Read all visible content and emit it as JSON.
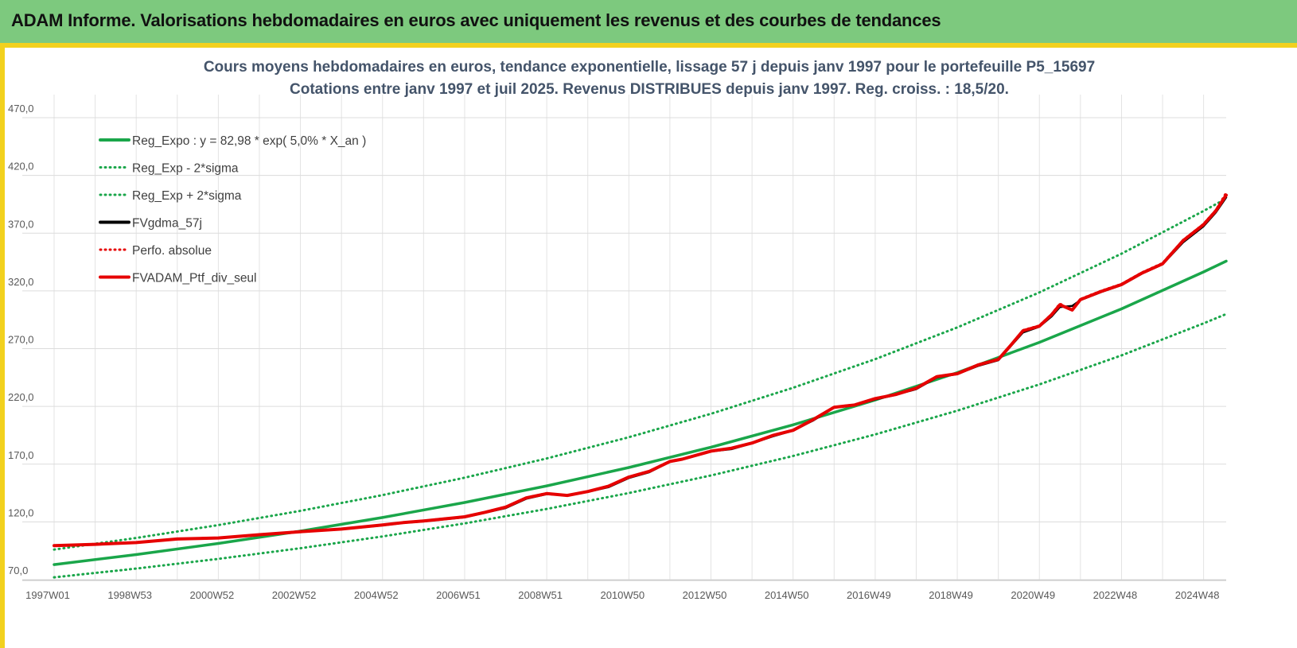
{
  "page": {
    "banner_title": "ADAM Informe. Valorisations hebdomadaires en euros avec uniquement les revenus et des courbes de tendances"
  },
  "chart_data": {
    "type": "line",
    "title": "Cours moyens hebdomadaires  en euros, tendance exponentielle, lissage 57 j depuis janv 1997 pour le portefeuille P5_15697",
    "subtitle": "Cotations entre janv 1997 et juil 2025. Revenus DISTRIBUES depuis janv 1997. Reg. croiss. : 18,5/20.",
    "xlabel": "",
    "ylabel": "",
    "x_start_year": 1997.0,
    "x_end_year": 2025.55,
    "x_tick_labels": [
      "1997W01",
      "1998W53",
      "2000W52",
      "2002W52",
      "2004W52",
      "2006W51",
      "2008W51",
      "2010W50",
      "2012W50",
      "2014W50",
      "2016W49",
      "2018W49",
      "2020W49",
      "2022W48",
      "2024W48"
    ],
    "x_tick_years": [
      1997.0,
      1999.0,
      2001.0,
      2003.0,
      2005.0,
      2007.0,
      2009.0,
      2011.0,
      2013.0,
      2015.0,
      2017.0,
      2019.0,
      2021.0,
      2023.0,
      2025.0
    ],
    "ylim": [
      70,
      490
    ],
    "y_ticks": [
      70,
      120,
      170,
      220,
      270,
      320,
      370,
      420,
      470
    ],
    "y_tick_labels": [
      "70,0",
      "120,0",
      "170,0",
      "220,0",
      "270,0",
      "320,0",
      "370,0",
      "420,0",
      "470,0"
    ],
    "grid": true,
    "legend_position": "top-left",
    "series": [
      {
        "name": "Reg_Expo : y = 82,98 * exp( 5,0% *  X_an )",
        "style": "solid",
        "color": "#1aa64a",
        "x": [
          1997.0,
          1999.0,
          2001.0,
          2003.0,
          2005.0,
          2007.0,
          2009.0,
          2011.0,
          2013.0,
          2015.0,
          2017.0,
          2019.0,
          2021.0,
          2023.0,
          2025.0,
          2025.55
        ],
        "y": [
          82.98,
          91.71,
          101.35,
          112.01,
          123.79,
          136.81,
          151.2,
          167.1,
          184.67,
          204.09,
          225.56,
          249.28,
          275.49,
          304.46,
          336.48,
          345.8
        ]
      },
      {
        "name": "Reg_Exp - 2*sigma",
        "style": "dotted",
        "color": "#1aa64a",
        "x": [
          1997.0,
          1999.0,
          2001.0,
          2003.0,
          2005.0,
          2007.0,
          2009.0,
          2011.0,
          2013.0,
          2015.0,
          2017.0,
          2019.0,
          2021.0,
          2023.0,
          2025.0,
          2025.55
        ],
        "y": [
          72.0,
          79.57,
          87.94,
          97.19,
          107.41,
          118.7,
          131.19,
          144.98,
          160.23,
          177.08,
          195.7,
          216.28,
          239.03,
          264.16,
          291.94,
          300.0
        ]
      },
      {
        "name": "Reg_Exp + 2*sigma",
        "style": "dotted",
        "color": "#1aa64a",
        "x": [
          1997.0,
          1999.0,
          2001.0,
          2003.0,
          2005.0,
          2007.0,
          2009.0,
          2011.0,
          2013.0,
          2015.0,
          2017.0,
          2019.0,
          2021.0,
          2023.0,
          2025.0,
          2025.55
        ],
        "y": [
          96.0,
          106.1,
          117.26,
          129.59,
          143.22,
          158.28,
          174.93,
          193.32,
          213.65,
          236.12,
          260.95,
          288.4,
          318.72,
          352.24,
          389.28,
          400.0
        ]
      },
      {
        "name": "FVgdma_57j",
        "style": "solid",
        "color": "#000000",
        "x": [
          1997.0,
          1997.5,
          1998.0,
          1999.0,
          2000.0,
          2001.0,
          2002.0,
          2003.0,
          2004.0,
          2005.0,
          2005.5,
          2006.0,
          2007.0,
          2007.5,
          2008.0,
          2008.5,
          2009.0,
          2009.5,
          2010.0,
          2010.5,
          2011.0,
          2011.5,
          2012.0,
          2012.3,
          2013.0,
          2013.5,
          2014.0,
          2014.5,
          2015.0,
          2015.5,
          2016.0,
          2016.5,
          2017.0,
          2017.5,
          2018.0,
          2018.5,
          2019.0,
          2019.5,
          2020.0,
          2020.3,
          2020.6,
          2021.0,
          2021.3,
          2021.5,
          2021.8,
          2022.0,
          2022.5,
          2023.0,
          2023.5,
          2024.0,
          2024.5,
          2025.0,
          2025.3,
          2025.55
        ],
        "y": [
          99.5,
          99.8,
          100.5,
          102.0,
          105.0,
          106.0,
          108.5,
          112.0,
          113.5,
          117.0,
          119.0,
          120.5,
          124.0,
          128.0,
          132.0,
          140.0,
          144.0,
          143.0,
          146.0,
          150.0,
          158.0,
          163.0,
          172.0,
          174.0,
          181.0,
          183.0,
          188.0,
          194.0,
          199.0,
          208.0,
          219.0,
          221.0,
          226.0,
          230.0,
          235.0,
          245.0,
          248.0,
          255.0,
          260.0,
          272.0,
          284.0,
          289.0,
          298.0,
          306.0,
          307.0,
          312.0,
          319.0,
          325.0,
          335.0,
          343.0,
          362.0,
          376.0,
          388.0,
          401.0
        ]
      },
      {
        "name": "Perfo. absolue",
        "style": "dotted",
        "color": "#e60000",
        "x": [
          1997.0,
          1998.0,
          1999.0,
          2000.0,
          2001.0,
          2002.0,
          2003.0,
          2004.0,
          2005.0,
          2005.5,
          2006.0,
          2007.0,
          2007.5,
          2008.0,
          2008.5,
          2009.0,
          2009.5,
          2010.0,
          2010.5,
          2011.0,
          2011.5,
          2012.0,
          2012.3,
          2013.0,
          2013.5,
          2014.0,
          2014.5,
          2015.0,
          2015.5,
          2016.0,
          2016.5,
          2017.0,
          2017.5,
          2018.0,
          2018.5,
          2019.0,
          2019.5,
          2020.0,
          2020.3,
          2020.6,
          2021.0,
          2021.3,
          2021.5,
          2021.8,
          2022.0,
          2022.5,
          2023.0,
          2023.5,
          2024.0,
          2024.5,
          2025.0,
          2025.3,
          2025.55
        ],
        "y": [
          99.5,
          100.7,
          102.2,
          105.3,
          106.2,
          109.0,
          111.6,
          114.0,
          117.4,
          119.5,
          121.0,
          124.5,
          128.5,
          133.0,
          141.0,
          144.8,
          142.8,
          146.5,
          151.0,
          159.0,
          164.0,
          172.5,
          174.5,
          181.5,
          184.0,
          188.5,
          195.0,
          199.5,
          209.0,
          219.5,
          221.5,
          227.0,
          230.5,
          236.0,
          246.0,
          248.5,
          256.0,
          261.0,
          273.0,
          286.0,
          290.0,
          300.0,
          309.0,
          303.0,
          313.0,
          320.0,
          326.0,
          336.0,
          344.0,
          364.0,
          378.0,
          390.0,
          405.0
        ]
      },
      {
        "name": "FVADAM_Ptf_div_seul",
        "style": "solid",
        "color": "#e60000",
        "x": [
          1997.0,
          1998.0,
          1999.0,
          2000.0,
          2001.0,
          2002.0,
          2003.0,
          2004.0,
          2005.0,
          2005.5,
          2006.0,
          2007.0,
          2007.5,
          2008.0,
          2008.5,
          2009.0,
          2009.5,
          2010.0,
          2010.5,
          2011.0,
          2011.5,
          2012.0,
          2012.3,
          2013.0,
          2013.5,
          2014.0,
          2014.5,
          2015.0,
          2015.5,
          2016.0,
          2016.5,
          2017.0,
          2017.5,
          2018.0,
          2018.5,
          2019.0,
          2019.5,
          2020.0,
          2020.3,
          2020.6,
          2021.0,
          2021.3,
          2021.5,
          2021.8,
          2022.0,
          2022.5,
          2023.0,
          2023.5,
          2024.0,
          2024.5,
          2025.0,
          2025.3,
          2025.55
        ],
        "y": [
          99.5,
          100.6,
          102.1,
          105.2,
          106.1,
          108.9,
          111.5,
          113.8,
          117.3,
          119.4,
          120.8,
          124.4,
          128.3,
          132.8,
          140.8,
          144.5,
          142.9,
          146.3,
          150.8,
          158.8,
          163.8,
          172.3,
          174.3,
          181.3,
          183.8,
          188.3,
          194.8,
          199.3,
          208.8,
          219.3,
          221.3,
          226.8,
          230.3,
          235.8,
          245.8,
          248.3,
          255.8,
          260.8,
          272.8,
          285.5,
          289.5,
          299.5,
          308.0,
          303.5,
          312.5,
          319.5,
          325.5,
          335.5,
          343.5,
          363.5,
          377.5,
          389.5,
          403.0
        ]
      }
    ]
  }
}
